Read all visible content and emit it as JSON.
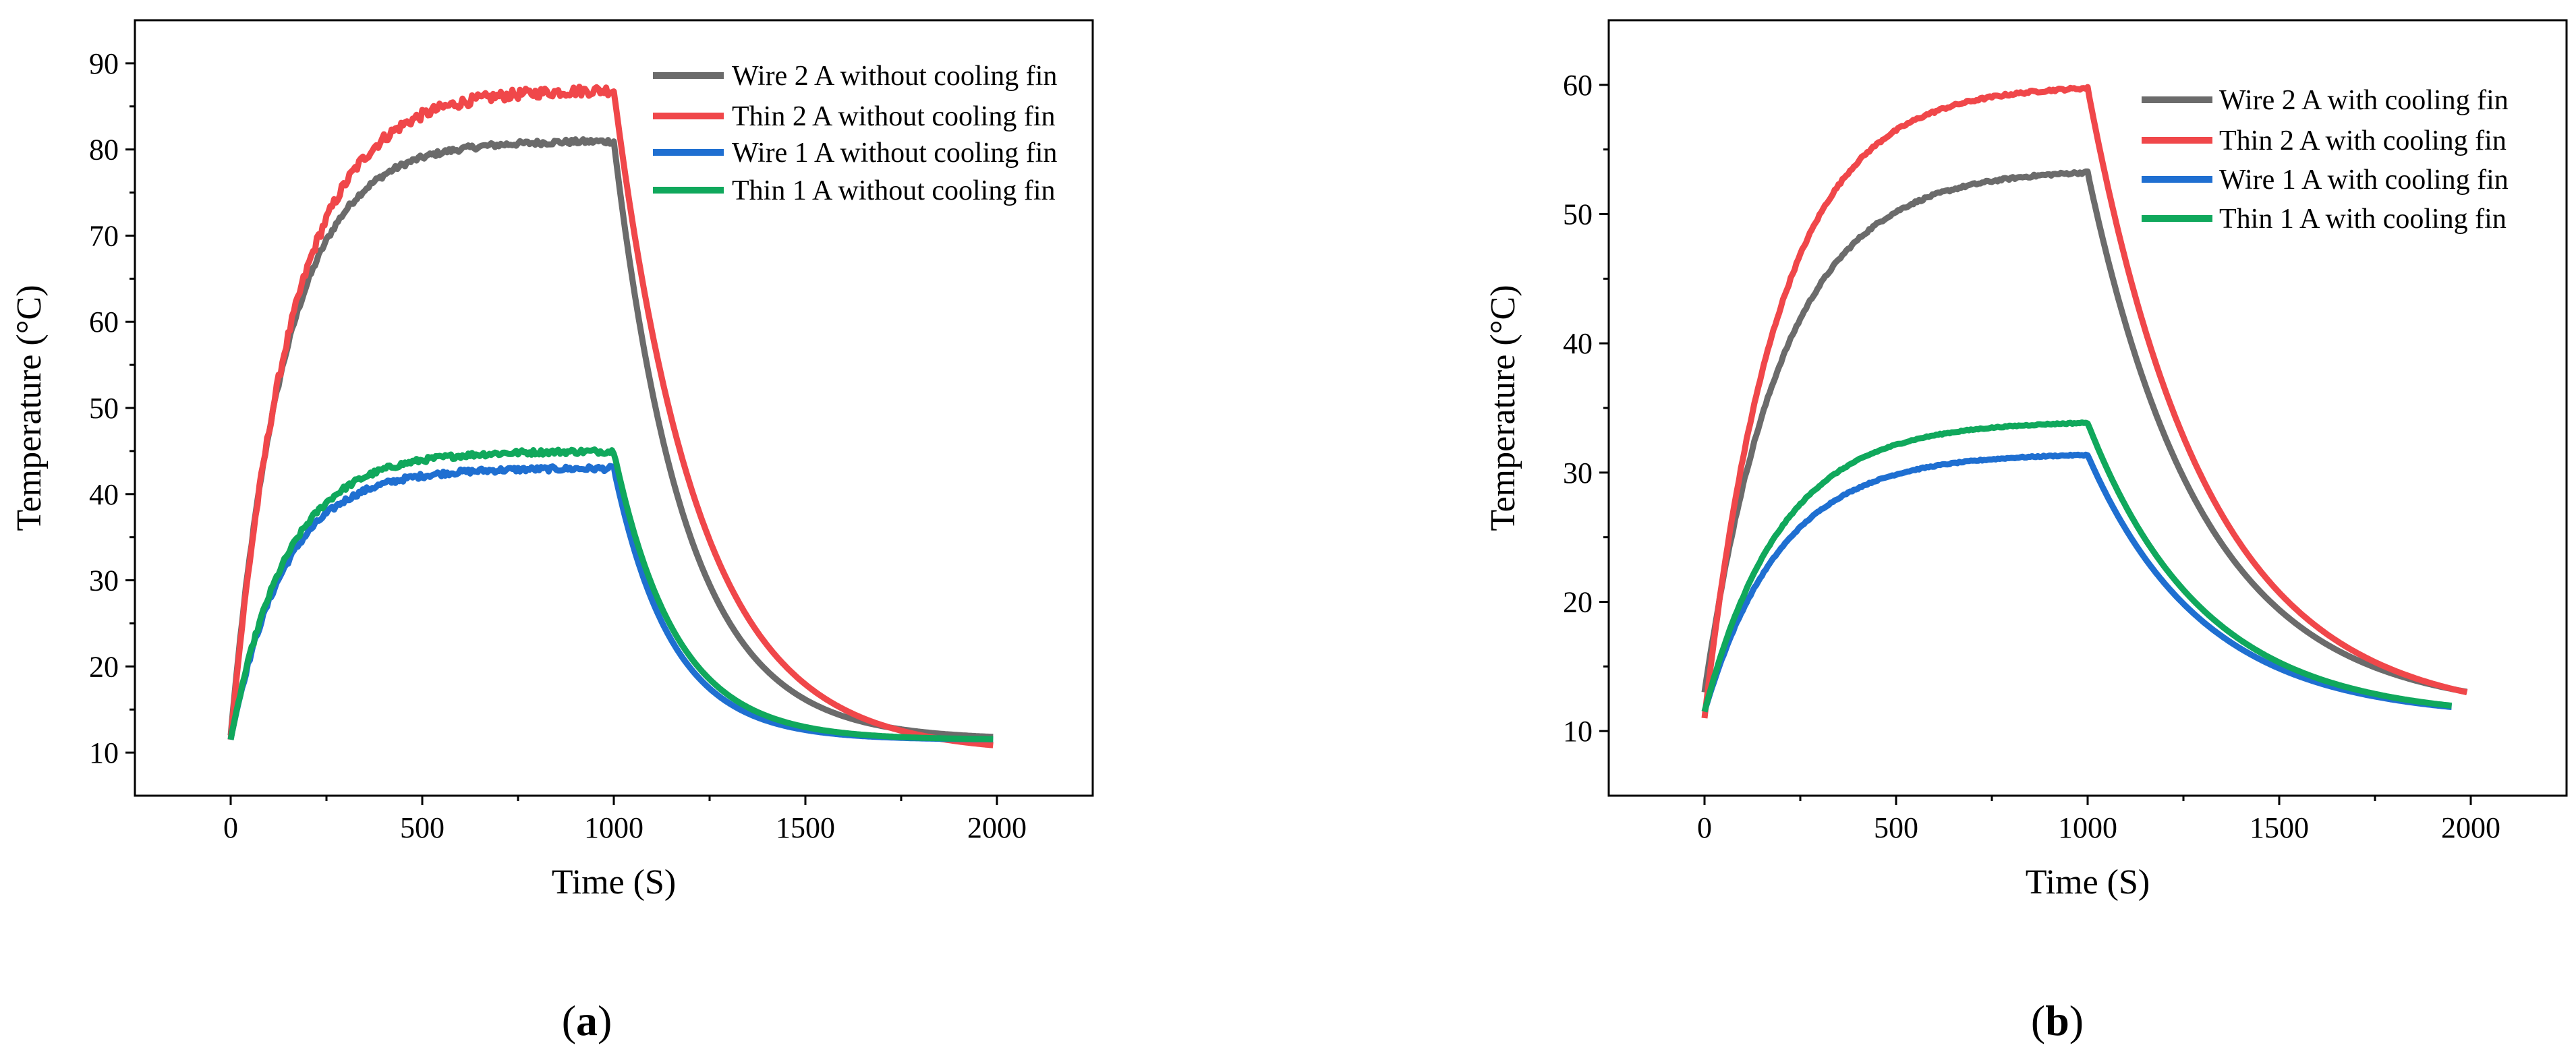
{
  "chart_data": [
    {
      "type": "line",
      "panel_label": {
        "open": "(",
        "letter": "a",
        "close": ")"
      },
      "xlabel": "Time (S)",
      "ylabel": "Temperature (°C)",
      "xlim": [
        -250,
        2250
      ],
      "ylim": [
        5,
        95
      ],
      "xticks": [
        0,
        500,
        1000,
        1500,
        2000
      ],
      "yticks": [
        10,
        20,
        30,
        40,
        50,
        60,
        70,
        80,
        90
      ],
      "legend_position": "top-right",
      "series": [
        {
          "name": "Wire 2 A without cooling fin",
          "color": "#6b6b6b",
          "T0": 12,
          "Tss": 81,
          "tau_heat": 140,
          "t_off": 1000,
          "T_amb": 11.5,
          "tau_cool": 185,
          "t_end": 1990,
          "noise": 0.3
        },
        {
          "name": "Thin 2 A without cooling fin",
          "color": "#f0474a",
          "T0": 11.5,
          "Tss": 87,
          "tau_heat": 155,
          "t_off": 1000,
          "T_amb": 10,
          "tau_cool": 220,
          "t_end": 1990,
          "noise": 0.6
        },
        {
          "name": "Wire 1 A without cooling fin",
          "color": "#1f6fd1",
          "T0": 11.5,
          "Tss": 43,
          "tau_heat": 140,
          "t_off": 1000,
          "T_amb": 11.5,
          "tau_cool": 150,
          "t_end": 1990,
          "noise": 0.3
        },
        {
          "name": "Thin 1 A without cooling fin",
          "color": "#10a85c",
          "T0": 11.5,
          "Tss": 45,
          "tau_heat": 145,
          "t_off": 1000,
          "T_amb": 11.5,
          "tau_cool": 160,
          "t_end": 1990,
          "noise": 0.3
        }
      ]
    },
    {
      "type": "line",
      "panel_label": {
        "open": "(",
        "letter": "b",
        "close": ")"
      },
      "xlabel": "Time (S)",
      "ylabel": "Temperature (°C)",
      "xlim": [
        -250,
        2250
      ],
      "ylim": [
        5,
        65
      ],
      "xticks": [
        0,
        500,
        1000,
        1500,
        2000
      ],
      "yticks": [
        10,
        20,
        30,
        40,
        50,
        60
      ],
      "legend_position": "top-right",
      "series": [
        {
          "name": "Wire 2 A with cooling fin",
          "color": "#6b6b6b",
          "T0": 13,
          "Tss": 53.5,
          "tau_heat": 200,
          "t_off": 1000,
          "T_amb": 11.5,
          "tau_cool": 300,
          "t_end": 1990,
          "noise": 0.1
        },
        {
          "name": "Thin 2 A with cooling fin",
          "color": "#f0474a",
          "T0": 11,
          "Tss": 60,
          "tau_heat": 190,
          "t_off": 1000,
          "T_amb": 11,
          "tau_cool": 310,
          "t_end": 1990,
          "noise": 0.1
        },
        {
          "name": "Wire 1 A with cooling fin",
          "color": "#1f6fd1",
          "T0": 11.5,
          "Tss": 31.5,
          "tau_heat": 200,
          "t_off": 1000,
          "T_amb": 11,
          "tau_cool": 300,
          "t_end": 1950,
          "noise": 0.05
        },
        {
          "name": "Thin 1 A with cooling fin",
          "color": "#10a85c",
          "T0": 11.5,
          "Tss": 34,
          "tau_heat": 200,
          "t_off": 1000,
          "T_amb": 11,
          "tau_cool": 300,
          "t_end": 1950,
          "noise": 0.05
        }
      ]
    }
  ]
}
